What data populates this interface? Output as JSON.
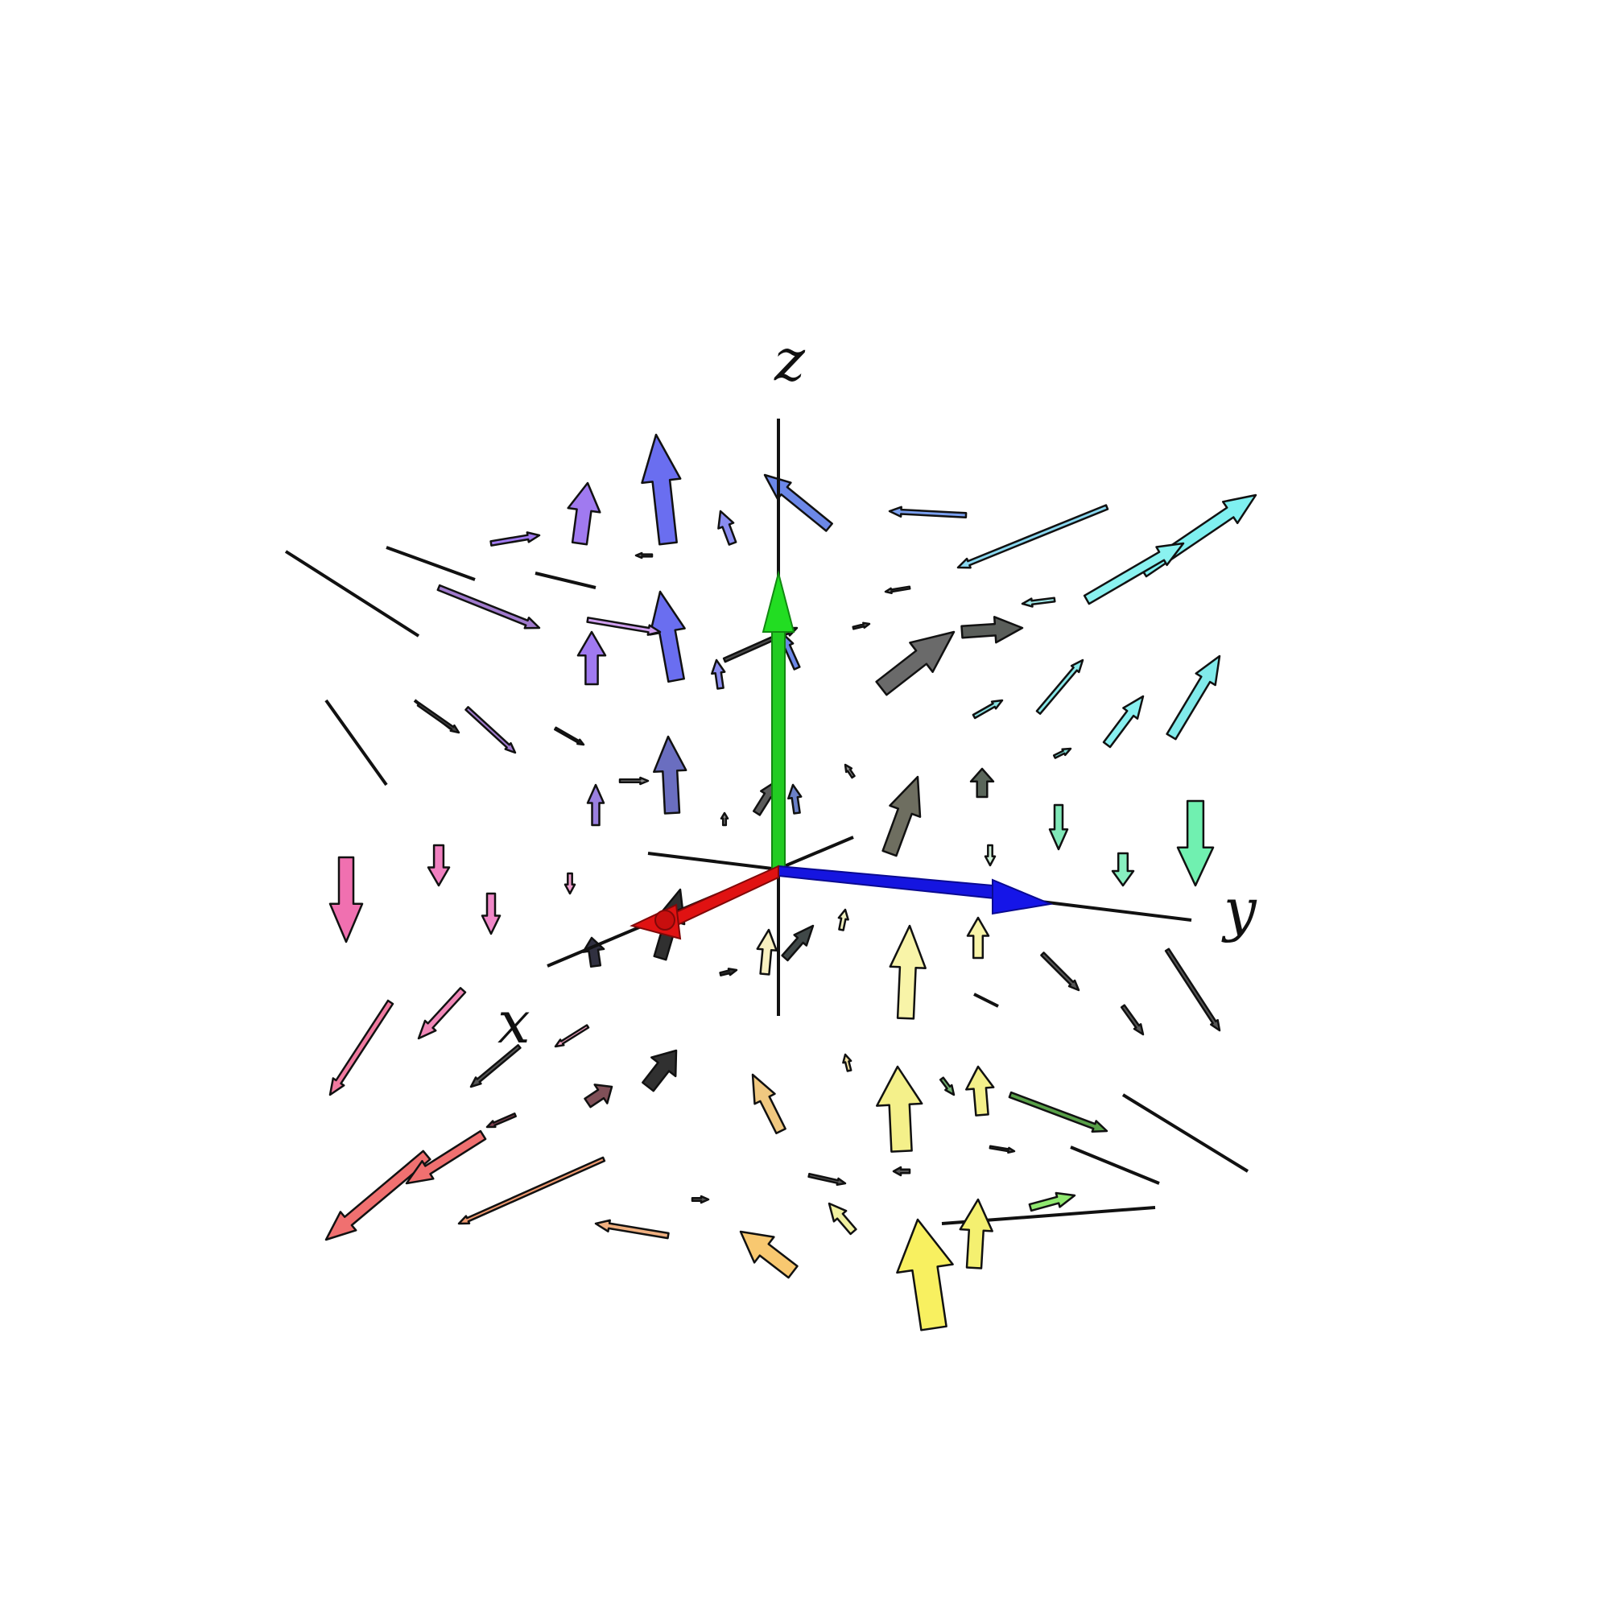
{
  "axes": {
    "x": {
      "label": "x"
    },
    "y": {
      "label": "y"
    },
    "z": {
      "label": "z"
    }
  },
  "colors": {
    "x_basis": "#e01010",
    "y_basis": "#1010e0",
    "z_basis": "#10d010",
    "axis_line": "#111111"
  }
}
